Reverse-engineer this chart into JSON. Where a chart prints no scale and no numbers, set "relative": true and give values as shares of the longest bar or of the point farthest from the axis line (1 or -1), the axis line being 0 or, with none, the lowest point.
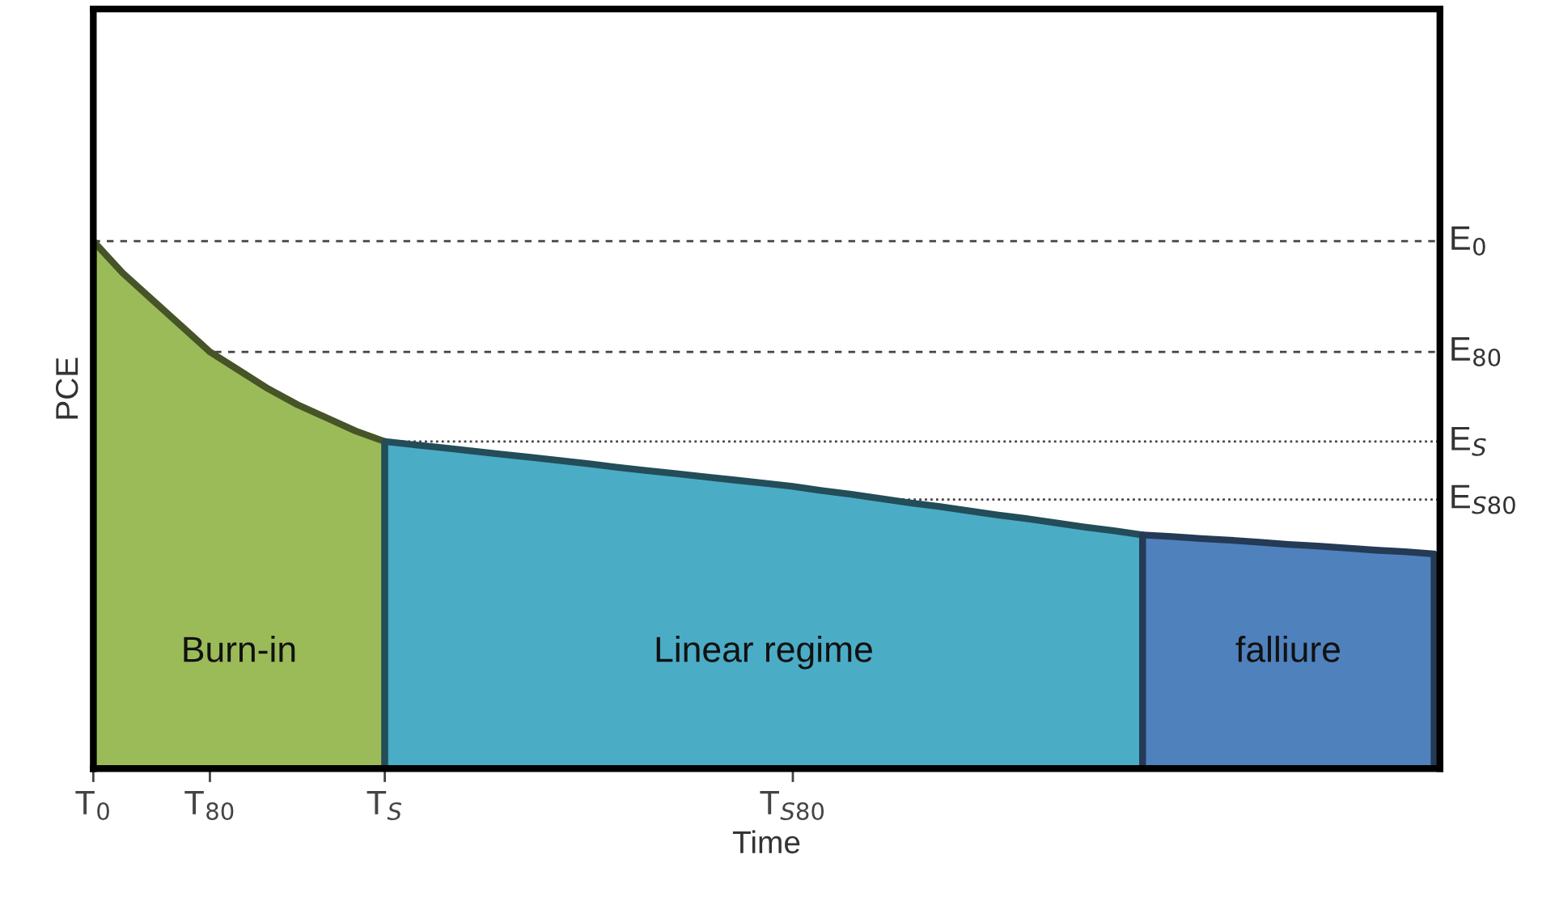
{
  "chart_data": {
    "type": "area",
    "relative": true,
    "xlabel": "Time",
    "ylabel": "PCE",
    "categories": [
      "T$_{0}$",
      null,
      null,
      null,
      "T$_{80}$",
      null,
      null,
      null,
      null,
      null,
      "T$_{S}$",
      null,
      null,
      null,
      null,
      null,
      null,
      null,
      null,
      null,
      null,
      null,
      null,
      null,
      "T$_{S80}$",
      null,
      null,
      null,
      null,
      null,
      null,
      null,
      null,
      null,
      null,
      null,
      null,
      null,
      null,
      null,
      null,
      null,
      null,
      null,
      null,
      null,
      null
    ],
    "series": [
      {
        "color": "#9bbb59",
        "values": [
          1.0,
          0.94,
          0.89,
          0.84,
          0.79,
          0.755,
          0.72,
          0.69,
          0.665,
          0.64,
          0.62,
          null,
          null,
          null,
          null,
          null,
          null,
          null,
          null,
          null,
          null,
          null,
          null,
          null,
          null,
          null,
          null,
          null,
          null,
          null,
          null,
          null,
          null,
          null,
          null,
          null,
          null,
          null,
          null,
          null,
          null,
          null,
          null,
          null,
          null,
          null,
          null
        ]
      },
      {
        "color": "#4bacc6",
        "values": [
          null,
          null,
          null,
          null,
          null,
          null,
          null,
          null,
          null,
          null,
          0.62,
          0.614,
          0.608,
          0.602,
          0.596,
          0.59,
          0.584,
          0.578,
          0.571,
          0.565,
          0.559,
          0.553,
          0.547,
          0.541,
          0.535,
          0.527,
          0.52,
          0.512,
          0.504,
          0.497,
          0.489,
          0.481,
          0.474,
          0.466,
          0.458,
          0.451,
          0.443,
          null,
          null,
          null,
          null,
          null,
          null,
          null,
          null,
          null,
          null
        ]
      },
      {
        "color": "#4f81bd",
        "values": [
          null,
          null,
          null,
          null,
          null,
          null,
          null,
          null,
          null,
          null,
          null,
          null,
          null,
          null,
          null,
          null,
          null,
          null,
          null,
          null,
          null,
          null,
          null,
          null,
          null,
          null,
          null,
          null,
          null,
          null,
          null,
          null,
          null,
          null,
          null,
          null,
          0.443,
          0.44,
          0.436,
          0.433,
          0.429,
          0.425,
          0.422,
          0.418,
          0.414,
          0.411,
          0.407
        ]
      }
    ],
    "ref_lines": [
      {
        "axis": "y",
        "value": 1.0,
        "label": "E$_{0}$",
        "line_style": "dashed"
      },
      {
        "axis": "y",
        "value": 0.79,
        "label": "E$_{80}$",
        "line_style": "dashed"
      },
      {
        "axis": "y",
        "value": 0.62,
        "label": "E$_{S}$",
        "line_style": "dotted"
      },
      {
        "axis": "y",
        "value": 0.51,
        "label": "E$_{S80}$",
        "line_style": "dotted"
      }
    ],
    "annotations": [
      "Burn-in",
      "Linear regime",
      "falliure"
    ]
  }
}
